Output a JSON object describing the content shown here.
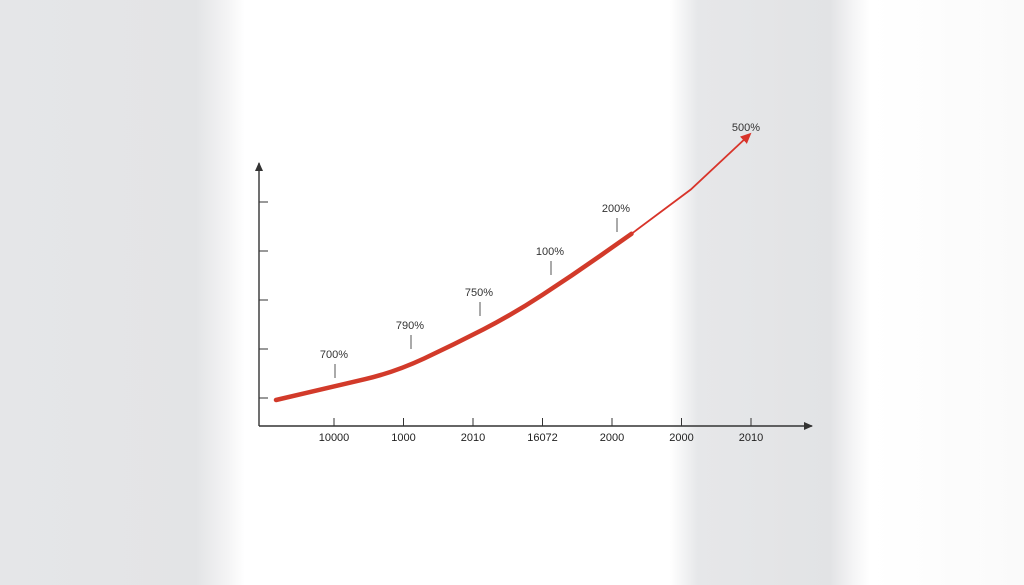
{
  "chart_data": {
    "type": "line",
    "title": "",
    "xlabel": "",
    "ylabel": "",
    "x_tick_labels": [
      "10000",
      "1000",
      "2010",
      "16072",
      "2000",
      "2000",
      "2010"
    ],
    "y_tick_count": 5,
    "series": [
      {
        "values": [
          0,
          0.05,
          0.1,
          0.2,
          0.31,
          0.45,
          0.6,
          0.76,
          0.96
        ]
      }
    ],
    "annotations": [
      "700%",
      "790%",
      "750%",
      "100%",
      "200%",
      "500%"
    ],
    "grid": false,
    "legend": "none",
    "colors": {
      "series": "#d23a2a",
      "axis": "#333333",
      "arrow": "#d8342a"
    }
  }
}
